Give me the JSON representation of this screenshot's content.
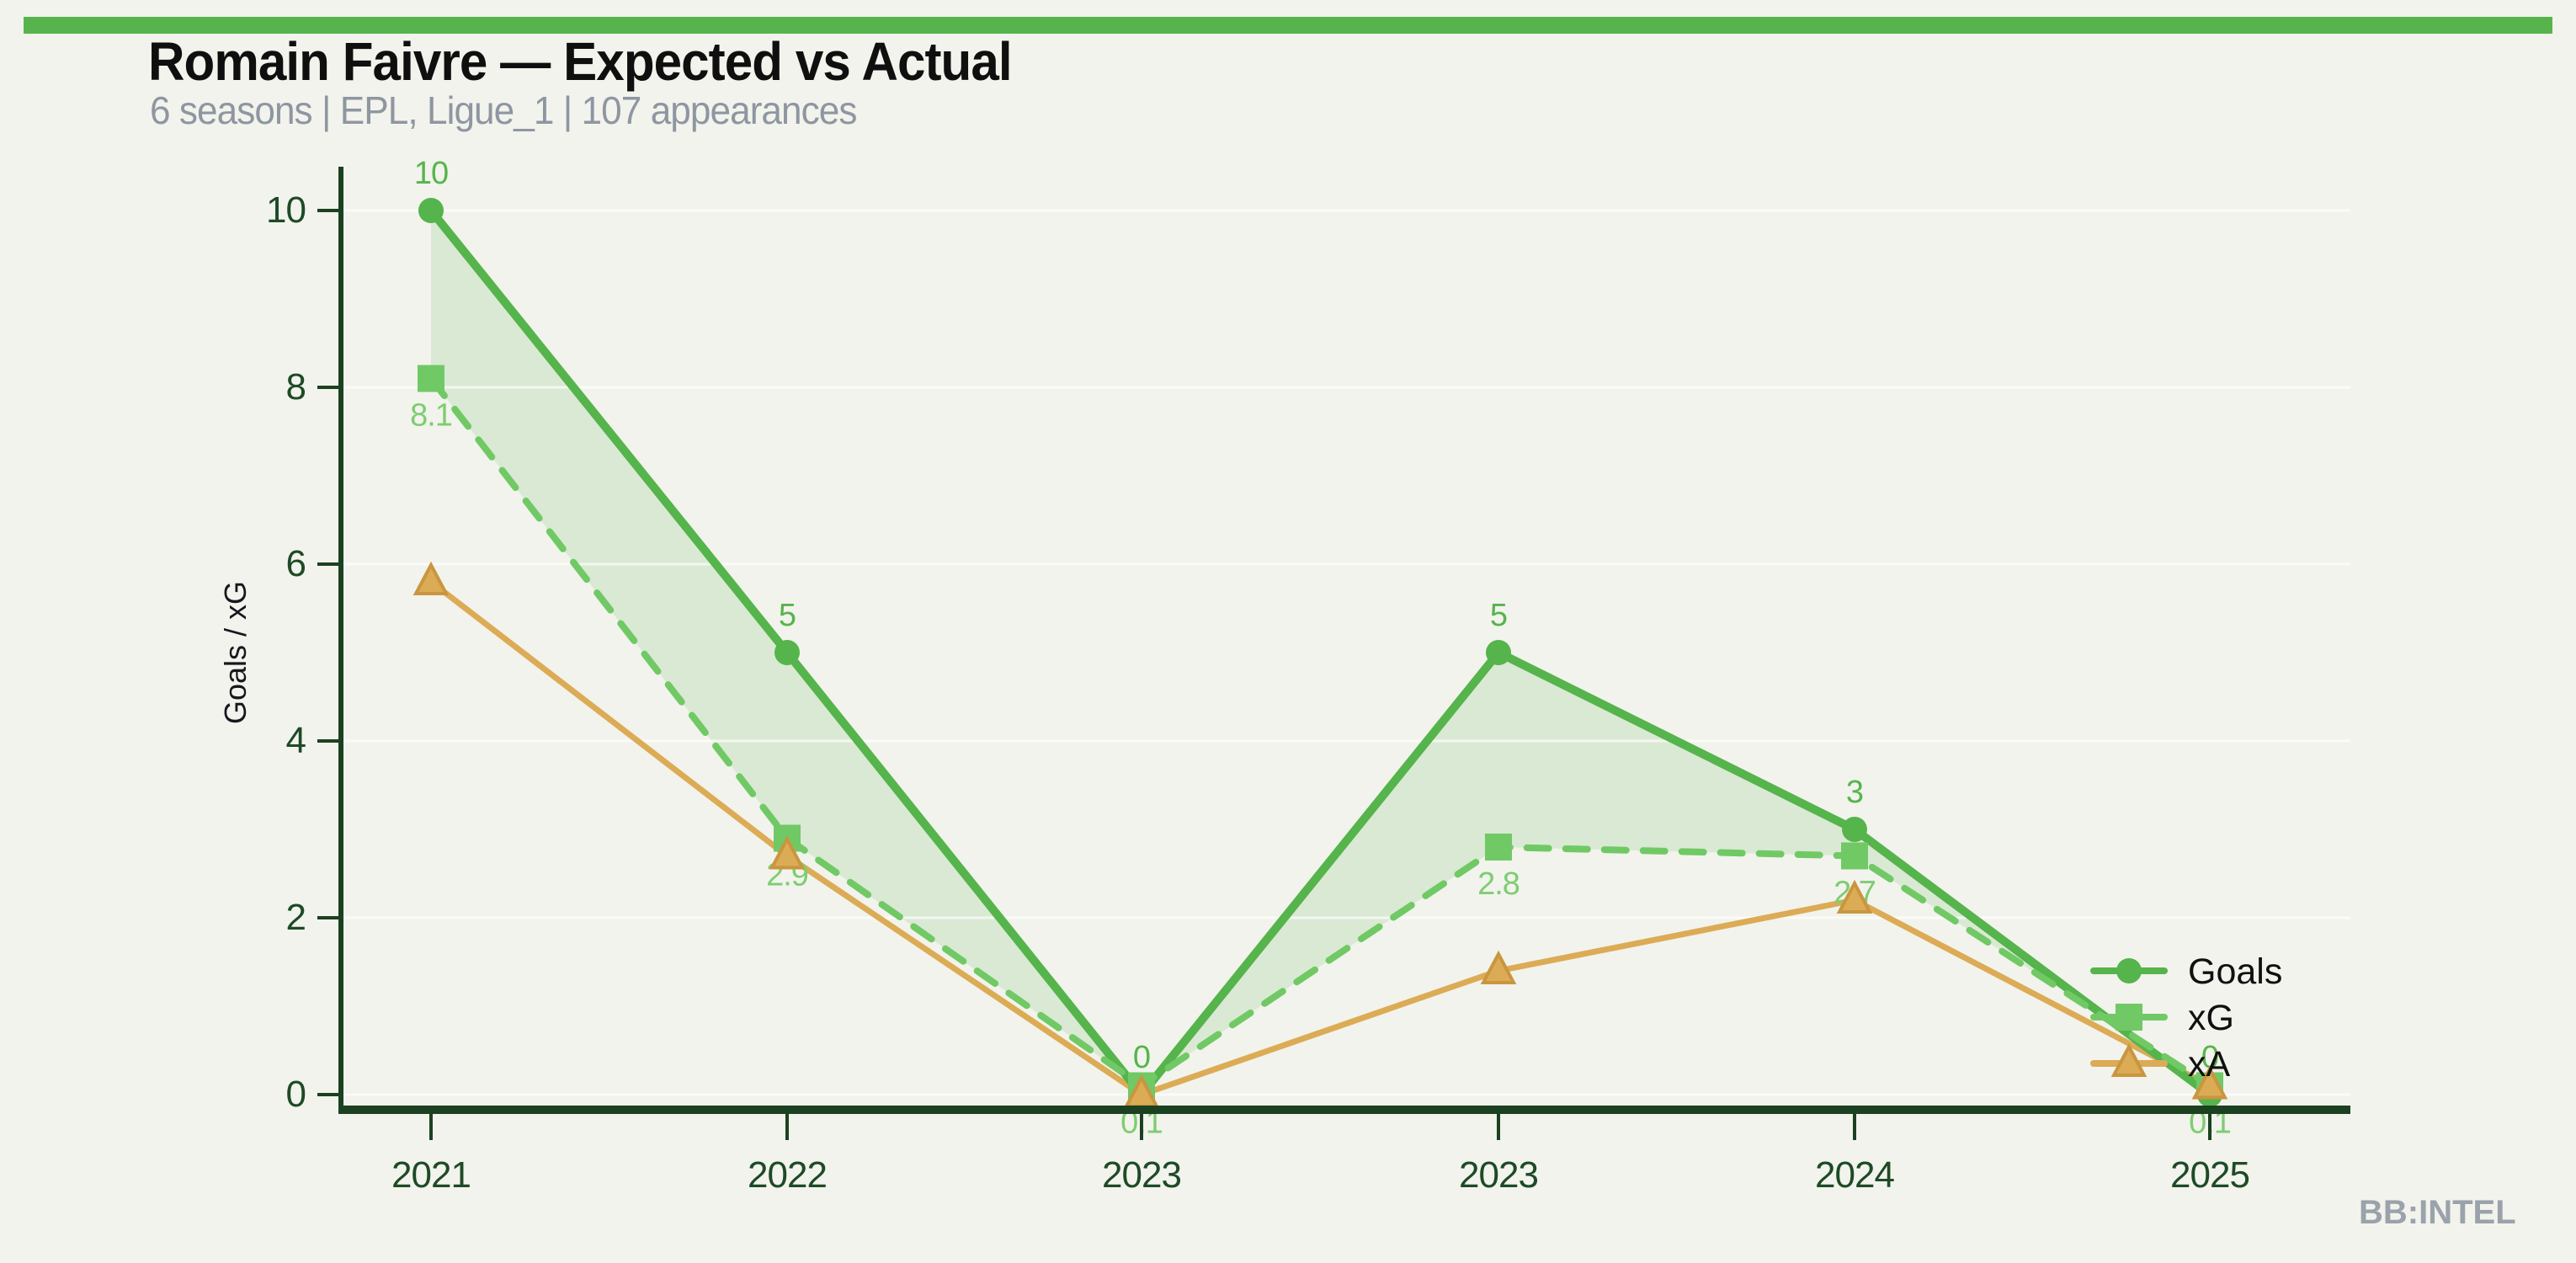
{
  "page": {
    "title": "Romain Faivre — Expected vs Actual",
    "subtitle": "6 seasons | EPL, Ligue_1 | 107 appearances",
    "watermark": "BB:INTEL",
    "colors": {
      "background": "#f2f3ec",
      "accent_bar": "#57b44c",
      "title_text": "#0f0f0f",
      "subtitle_text": "#8e96a1",
      "axis": "#1b4121",
      "tick_text": "#1e4a26",
      "grid": "rgba(255,255,255,0.65)",
      "watermark_text": "#9aa2ab"
    }
  },
  "chart_data": {
    "type": "line",
    "title": "Romain Faivre — Expected vs Actual",
    "subtitle": "6 seasons | EPL, Ligue_1 | 107 appearances",
    "xlabel": "",
    "ylabel": "Goals / xG",
    "categories": [
      "2021",
      "2022",
      "2023",
      "2023",
      "2024",
      "2025"
    ],
    "ylim": [
      0,
      10
    ],
    "yticks": [
      0,
      2,
      4,
      6,
      8,
      10
    ],
    "grid": "horizontal",
    "legend_position": "right-inside",
    "series": [
      {
        "name": "Goals",
        "values": [
          10,
          5,
          0,
          5,
          3,
          0
        ],
        "point_labels": [
          "10",
          "5",
          "0",
          "5",
          "3",
          "0"
        ],
        "point_labels_position": "above",
        "color": "#55b44b",
        "label_color": "#57b44c",
        "marker": "circle",
        "line_style": "solid",
        "line_width": 10
      },
      {
        "name": "xG",
        "values": [
          8.1,
          2.9,
          0.1,
          2.8,
          2.7,
          0.1
        ],
        "point_labels": [
          "8.1",
          "2.9",
          "0.1",
          "2.8",
          "2.7",
          "0.1"
        ],
        "point_labels_position": "below",
        "color": "#70c965",
        "label_color": "#7ecd72",
        "marker": "square",
        "line_style": "dashed",
        "line_width": 8
      },
      {
        "name": "xA",
        "values": [
          5.8,
          2.7,
          0,
          1.4,
          2.2,
          0.1
        ],
        "point_labels": [],
        "point_labels_position": "none",
        "color": "#dcab55",
        "marker_edge": "#c9963f",
        "marker": "triangle",
        "line_style": "solid",
        "line_width": 7
      }
    ],
    "fill_between": {
      "upper": "Goals",
      "lower": "xG",
      "color": "#65b957",
      "opacity": 0.17
    }
  }
}
